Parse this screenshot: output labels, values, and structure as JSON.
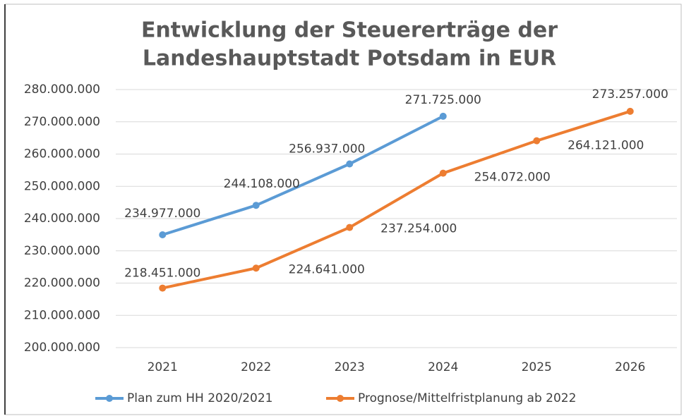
{
  "chart_data": {
    "type": "line",
    "title": [
      "Entwicklung der Steuererträge der",
      "Landeshauptstadt Potsdam in EUR"
    ],
    "categories": [
      "2021",
      "2022",
      "2023",
      "2024",
      "2025",
      "2026"
    ],
    "series": [
      {
        "name": "Plan zum HH 2020/2021",
        "color": "#5b9bd5",
        "values": [
          234977000,
          244108000,
          256937000,
          271725000,
          null,
          null
        ],
        "value_labels": [
          "234.977.000",
          "244.108.000",
          "256.937.000",
          "271.725.000",
          null,
          null
        ]
      },
      {
        "name": "Prognose/Mittelfristplanung ab 2022",
        "color": "#ed7d31",
        "values": [
          218451000,
          224641000,
          237254000,
          254072000,
          264121000,
          273257000
        ],
        "value_labels": [
          "218.451.000",
          "224.641.000",
          "237.254.000",
          "254.072.000",
          "264.121.000",
          "273.257.000"
        ]
      }
    ],
    "ylim": [
      200000000,
      280000000
    ],
    "yticks": [
      {
        "value": 200000000,
        "label": "200.000.000"
      },
      {
        "value": 210000000,
        "label": "210.000.000"
      },
      {
        "value": 220000000,
        "label": "220.000.000"
      },
      {
        "value": 230000000,
        "label": "230.000.000"
      },
      {
        "value": 240000000,
        "label": "240.000.000"
      },
      {
        "value": 250000000,
        "label": "250.000.000"
      },
      {
        "value": 260000000,
        "label": "260.000.000"
      },
      {
        "value": 270000000,
        "label": "270.000.000"
      },
      {
        "value": 280000000,
        "label": "280.000.000"
      }
    ],
    "grid": true,
    "legend": "bottom"
  }
}
